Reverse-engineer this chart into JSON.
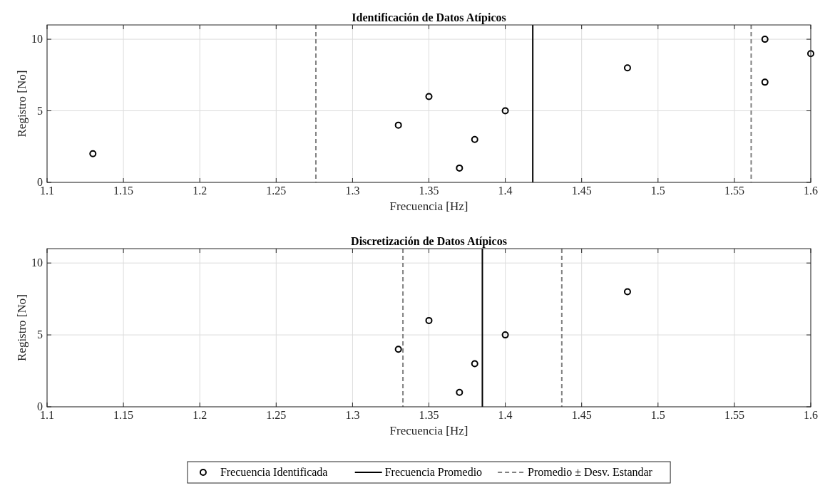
{
  "chart_data": [
    {
      "type": "scatter",
      "title": "Identificación de Datos Atípicos",
      "xlabel": "Frecuencia [Hz]",
      "ylabel": "Registro [No]",
      "series": [
        {
          "color": "#000000",
          "x": [
            1.13,
            1.33,
            1.35,
            1.37,
            1.38,
            1.4,
            1.48,
            1.57,
            1.57,
            1.6
          ],
          "values": [
            2,
            4,
            6,
            1,
            3,
            5,
            8,
            10,
            7,
            9
          ]
        }
      ],
      "marker": "circle",
      "xlim": [
        1.1,
        1.6
      ],
      "xticks": [
        1.1,
        1.15,
        1.2,
        1.25,
        1.3,
        1.35,
        1.4,
        1.45,
        1.5,
        1.55,
        1.6
      ],
      "ylim": [
        0,
        11
      ],
      "yticks": [
        0,
        5,
        10
      ],
      "grid": true,
      "ref_lines": [
        {
          "axis": "x",
          "value": 1.418,
          "color": "#000000",
          "line_style": "solid"
        },
        {
          "axis": "x",
          "value": 1.276,
          "color": "#808080",
          "line_style": "dashed"
        },
        {
          "axis": "x",
          "value": 1.561,
          "color": "#808080",
          "line_style": "dashed"
        }
      ]
    },
    {
      "type": "scatter",
      "title": "Discretización de Datos Atípicos",
      "xlabel": "Frecuencia [Hz]",
      "ylabel": "Registro [No]",
      "series": [
        {
          "name": "Frecuencia Identificada",
          "color": "#000000",
          "x": [
            1.33,
            1.35,
            1.37,
            1.38,
            1.4,
            1.48
          ],
          "values": [
            4,
            6,
            1,
            3,
            5,
            8
          ]
        }
      ],
      "marker": "circle",
      "xlim": [
        1.1,
        1.6
      ],
      "xticks": [
        1.1,
        1.15,
        1.2,
        1.25,
        1.3,
        1.35,
        1.4,
        1.45,
        1.5,
        1.55,
        1.6
      ],
      "ylim": [
        0,
        11
      ],
      "yticks": [
        0,
        5,
        10
      ],
      "grid": true,
      "legend": "bottom",
      "ref_lines": [
        {
          "axis": "x",
          "value": 1.385,
          "label": "Frecuencia Promedio",
          "color": "#000000",
          "line_style": "solid"
        },
        {
          "axis": "x",
          "value": 1.333,
          "label": "Promedio ± Desv. Estandar",
          "color": "#808080",
          "line_style": "dashed"
        },
        {
          "axis": "x",
          "value": 1.437,
          "color": "#808080",
          "line_style": "dashed"
        }
      ]
    }
  ]
}
